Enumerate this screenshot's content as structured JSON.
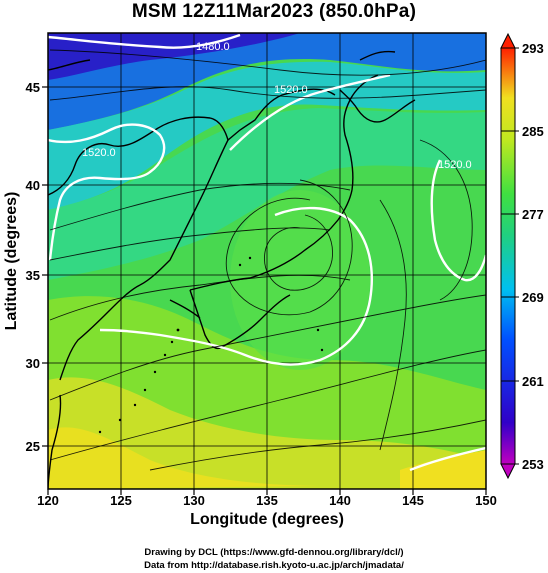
{
  "title": "MSM 12Z11Mar2023 (850.0hPa)",
  "x_axis_label": "Longitude (degrees)",
  "y_axis_label": "Latitude  (degrees)",
  "credit_line1": "Drawing by DCL (https://www.gfd-dennou.org/library/dcl/)",
  "credit_line2": "Data from http://database.rish.kyoto-u.ac.jp/arch/jmadata/",
  "x_ticks": [
    "120",
    "125",
    "130",
    "135",
    "140",
    "145",
    "150"
  ],
  "y_ticks": [
    "25",
    "30",
    "35",
    "40",
    "45"
  ],
  "colorbar_ticks": [
    "253",
    "261",
    "269",
    "277",
    "285",
    "293"
  ],
  "contour_labels": [
    "1480.0",
    "1520.0",
    "1520.0",
    "1520.0"
  ],
  "colors": {
    "cold": "#2030d0",
    "cool": "#10c0e0",
    "mild": "#30d060",
    "warm": "#a0e020",
    "hot": "#f0e020",
    "hottest": "#ff2000"
  },
  "chart_data": {
    "type": "heatmap",
    "title": "MSM 12Z11Mar2023 (850.0hPa)",
    "xlabel": "Longitude (degrees)",
    "ylabel": "Latitude  (degrees)",
    "xlim": [
      120,
      150
    ],
    "ylim": [
      22.4,
      47.6
    ],
    "colorbar_range": [
      253,
      293
    ],
    "colorbar_ticks": [
      253,
      261,
      269,
      277,
      285,
      293
    ],
    "overlays": [
      "geopotential height contours (white)",
      "wind streamlines (black)",
      "coastlines"
    ],
    "contour_levels": [
      1480.0,
      1520.0
    ]
  }
}
